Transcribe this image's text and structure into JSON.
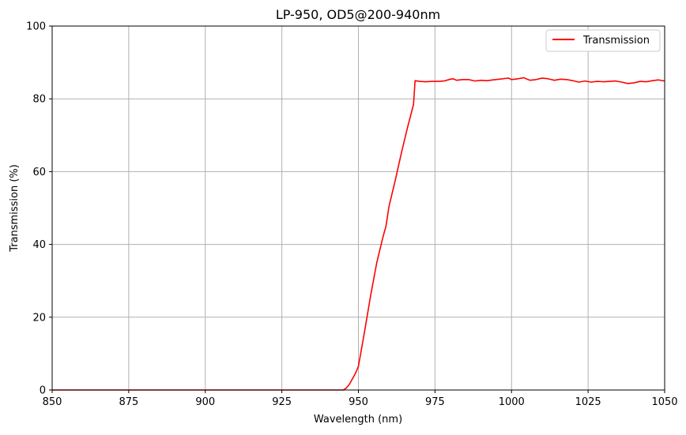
{
  "chart_data": {
    "type": "line",
    "title": "LP-950, OD5@200-940nm",
    "xlabel": "Wavelength (nm)",
    "ylabel": "Transmission (%)",
    "xlim": [
      850,
      1050
    ],
    "ylim": [
      0,
      100
    ],
    "x_ticks": [
      850,
      875,
      900,
      925,
      950,
      975,
      1000,
      1025,
      1050
    ],
    "y_ticks": [
      0,
      20,
      40,
      60,
      80,
      100
    ],
    "grid": true,
    "legend_position": "top-right",
    "series": [
      {
        "name": "Transmission",
        "color": "#ff0000",
        "x": [
          850,
          900,
          940,
          945,
          946,
          947,
          948,
          949,
          950,
          952,
          954,
          956,
          958,
          959,
          960,
          962,
          964,
          966,
          968,
          968.5,
          970,
          972,
          974,
          976,
          978,
          980,
          981,
          982,
          984,
          986,
          988,
          990,
          992,
          994,
          996,
          998,
          999,
          1000,
          1002,
          1004,
          1006,
          1008,
          1010,
          1012,
          1014,
          1016,
          1018,
          1020,
          1022,
          1024,
          1026,
          1028,
          1030,
          1032,
          1034,
          1036,
          1038,
          1040,
          1042,
          1044,
          1046,
          1048,
          1050
        ],
        "y": [
          0,
          0,
          0,
          0,
          0.5,
          1.5,
          3,
          4.5,
          6.5,
          16,
          26,
          35,
          42,
          45,
          50.5,
          57.5,
          65,
          72,
          78.5,
          85,
          84.8,
          84.7,
          84.8,
          84.8,
          84.9,
          85.4,
          85.5,
          85.1,
          85.3,
          85.3,
          84.9,
          85.1,
          85.0,
          85.2,
          85.4,
          85.6,
          85.7,
          85.3,
          85.5,
          85.8,
          85.1,
          85.3,
          85.7,
          85.5,
          85.1,
          85.4,
          85.3,
          85.0,
          84.6,
          84.9,
          84.6,
          84.8,
          84.7,
          84.8,
          84.9,
          84.6,
          84.2,
          84.4,
          84.8,
          84.7,
          85.0,
          85.2,
          84.9
        ]
      }
    ]
  }
}
